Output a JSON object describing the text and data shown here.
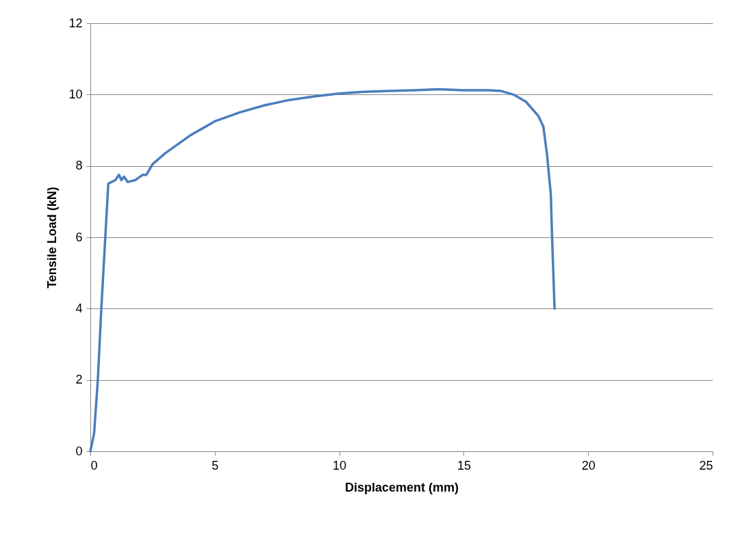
{
  "chart_data": {
    "type": "line",
    "xlabel": "Displacement (mm)",
    "ylabel": "Tensile Load (kN)",
    "x": [
      0,
      0.15,
      0.3,
      0.44,
      0.6,
      0.72,
      0.85,
      1.0,
      1.15,
      1.25,
      1.35,
      1.5,
      1.8,
      2.0,
      2.1,
      2.25,
      2.5,
      3,
      3.5,
      4,
      4.5,
      5,
      6,
      7,
      8,
      9,
      10,
      11,
      12,
      13,
      14,
      15,
      16,
      16.5,
      17,
      17.5,
      18,
      18.2,
      18.35,
      18.5,
      18.55,
      18.6,
      18.65
    ],
    "series": [
      {
        "color": "#4a7ebb",
        "values": [
          0,
          0.5,
          2,
          4,
          6,
          7.5,
          7.55,
          7.6,
          7.75,
          7.6,
          7.7,
          7.55,
          7.6,
          7.7,
          7.75,
          7.75,
          8.05,
          8.35,
          8.6,
          8.85,
          9.05,
          9.25,
          9.5,
          9.7,
          9.85,
          9.95,
          10.03,
          10.08,
          10.1,
          10.12,
          10.15,
          10.12,
          10.12,
          10.1,
          10.0,
          9.8,
          9.4,
          9.1,
          8.3,
          7.2,
          6,
          5,
          4
        ]
      }
    ],
    "xlim": [
      0,
      25
    ],
    "xticks": [
      0,
      5,
      10,
      15,
      20,
      25
    ],
    "ylim": [
      0,
      12
    ],
    "yticks": [
      0,
      2,
      4,
      6,
      8,
      10,
      12
    ],
    "grid": "y",
    "legend": false,
    "marker": "none",
    "line_style": "solid"
  }
}
